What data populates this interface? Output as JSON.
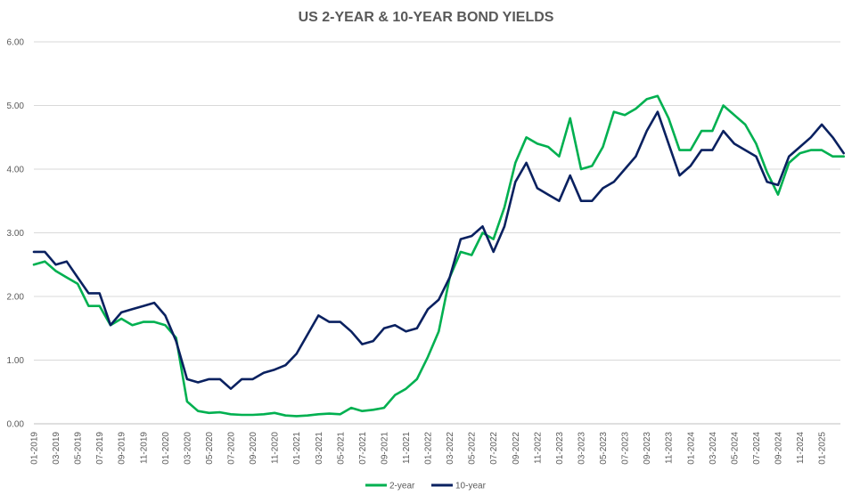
{
  "chart_data": {
    "type": "line",
    "title": "US 2-YEAR & 10-YEAR BOND YIELDS",
    "xlabel": "",
    "ylabel": "",
    "ylim": [
      0,
      6
    ],
    "yticks": [
      "0.00",
      "1.00",
      "2.00",
      "3.00",
      "4.00",
      "5.00",
      "6.00"
    ],
    "x_tick_labels": [
      "01-2019",
      "03-2019",
      "05-2019",
      "07-2019",
      "09-2019",
      "11-2019",
      "01-2020",
      "03-2020",
      "05-2020",
      "07-2020",
      "09-2020",
      "11-2020",
      "01-2021",
      "03-2021",
      "05-2021",
      "07-2021",
      "09-2021",
      "11-2021",
      "01-2022",
      "03-2022",
      "05-2022",
      "07-2022",
      "09-2022",
      "11-2022",
      "01-2023",
      "03-2023",
      "05-2023",
      "07-2023",
      "09-2023",
      "11-2023",
      "01-2024",
      "03-2024",
      "05-2024",
      "07-2024",
      "09-2024",
      "11-2024",
      "01-2025"
    ],
    "grid": true,
    "legend_position": "bottom",
    "x": [
      "2019-01",
      "2019-02",
      "2019-03",
      "2019-04",
      "2019-05",
      "2019-06",
      "2019-07",
      "2019-08",
      "2019-09",
      "2019-10",
      "2019-11",
      "2019-12",
      "2020-01",
      "2020-02",
      "2020-03",
      "2020-04",
      "2020-05",
      "2020-06",
      "2020-07",
      "2020-08",
      "2020-09",
      "2020-10",
      "2020-11",
      "2020-12",
      "2021-01",
      "2021-02",
      "2021-03",
      "2021-04",
      "2021-05",
      "2021-06",
      "2021-07",
      "2021-08",
      "2021-09",
      "2021-10",
      "2021-11",
      "2021-12",
      "2022-01",
      "2022-02",
      "2022-03",
      "2022-04",
      "2022-05",
      "2022-06",
      "2022-07",
      "2022-08",
      "2022-09",
      "2022-10",
      "2022-11",
      "2022-12",
      "2023-01",
      "2023-02",
      "2023-03",
      "2023-04",
      "2023-05",
      "2023-06",
      "2023-07",
      "2023-08",
      "2023-09",
      "2023-10",
      "2023-11",
      "2023-12",
      "2024-01",
      "2024-02",
      "2024-03",
      "2024-04",
      "2024-05",
      "2024-06",
      "2024-07",
      "2024-08",
      "2024-09",
      "2024-10",
      "2024-11",
      "2024-12",
      "2025-01",
      "2025-02",
      "2025-03"
    ],
    "series": [
      {
        "name": "2-year",
        "color": "#00b050",
        "values": [
          2.5,
          2.55,
          2.4,
          2.3,
          2.2,
          1.85,
          1.85,
          1.55,
          1.65,
          1.55,
          1.6,
          1.6,
          1.55,
          1.35,
          0.35,
          0.2,
          0.17,
          0.18,
          0.15,
          0.14,
          0.14,
          0.15,
          0.17,
          0.13,
          0.12,
          0.13,
          0.15,
          0.16,
          0.15,
          0.25,
          0.2,
          0.22,
          0.25,
          0.45,
          0.55,
          0.7,
          1.05,
          1.45,
          2.3,
          2.7,
          2.65,
          3.0,
          2.9,
          3.4,
          4.1,
          4.5,
          4.4,
          4.35,
          4.2,
          4.8,
          4.0,
          4.05,
          4.35,
          4.9,
          4.85,
          4.95,
          5.1,
          5.15,
          4.8,
          4.3,
          4.3,
          4.6,
          4.6,
          5.0,
          4.85,
          4.7,
          4.4,
          3.95,
          3.6,
          4.1,
          4.25,
          4.3,
          4.3,
          4.2,
          4.2
        ]
      },
      {
        "name": "10-year",
        "color": "#0a2160",
        "values": [
          2.7,
          2.7,
          2.5,
          2.55,
          2.3,
          2.05,
          2.05,
          1.55,
          1.75,
          1.8,
          1.85,
          1.9,
          1.7,
          1.3,
          0.7,
          0.65,
          0.7,
          0.7,
          0.55,
          0.7,
          0.7,
          0.8,
          0.85,
          0.92,
          1.1,
          1.4,
          1.7,
          1.6,
          1.6,
          1.45,
          1.25,
          1.3,
          1.5,
          1.55,
          1.45,
          1.5,
          1.8,
          1.95,
          2.3,
          2.9,
          2.95,
          3.1,
          2.7,
          3.1,
          3.8,
          4.1,
          3.7,
          3.6,
          3.5,
          3.9,
          3.5,
          3.5,
          3.7,
          3.8,
          4.0,
          4.2,
          4.6,
          4.9,
          4.4,
          3.9,
          4.05,
          4.3,
          4.3,
          4.6,
          4.4,
          4.3,
          4.2,
          3.8,
          3.75,
          4.2,
          4.35,
          4.5,
          4.7,
          4.5,
          4.25
        ]
      }
    ]
  }
}
